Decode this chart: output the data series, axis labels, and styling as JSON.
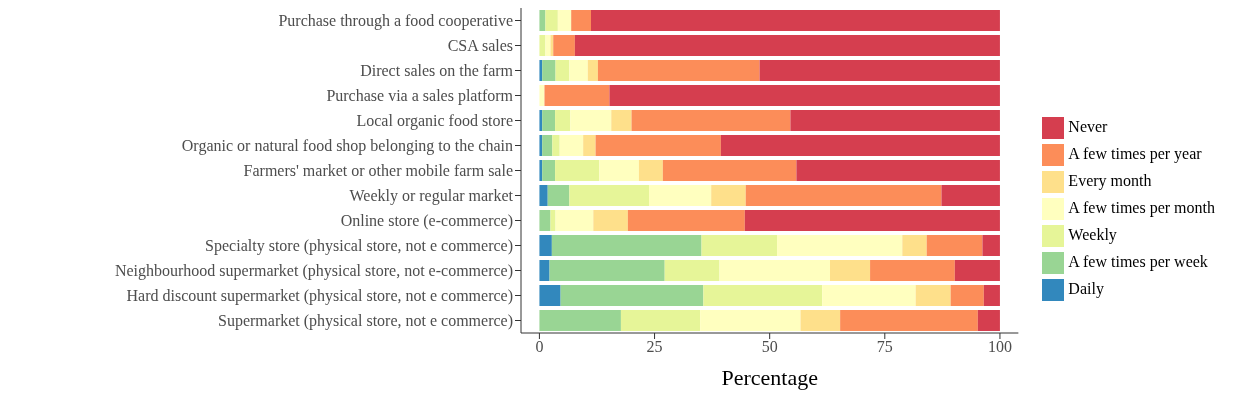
{
  "chart_data": {
    "type": "bar",
    "orientation": "horizontal",
    "stacked": true,
    "xlabel": "Percentage",
    "legend": "right",
    "grid": false,
    "xlim": [
      -4,
      104
    ],
    "xticks": [
      0,
      25,
      50,
      75,
      100
    ],
    "categories": [
      "Purchase through a food cooperative",
      "CSA sales",
      "Direct sales on the farm",
      "Purchase via a sales platform",
      "Local organic food store",
      "Organic or natural food shop belonging to the chain",
      "Farmers' market or other mobile farm sale",
      "Weekly or regular market",
      "Online store (e-commerce)",
      "Specialty store (physical store, not e commerce)",
      "Neighbourhood supermarket (physical store, not e-commerce)",
      "Hard discount supermarket (physical store, not e commerce)",
      "Supermarket (physical store, not e commerce)"
    ],
    "series": [
      {
        "name": "Daily",
        "color": "#3288bd",
        "values": [
          0,
          0,
          0.6,
          0,
          0.6,
          0.6,
          0.6,
          1.8,
          0,
          2.7,
          2.2,
          4.6,
          0
        ]
      },
      {
        "name": "A few times per week",
        "color": "#99d594",
        "values": [
          1.3,
          0,
          2.9,
          0,
          2.8,
          2.2,
          2.8,
          4.7,
          2.4,
          32.5,
          25.0,
          31.0,
          17.7
        ]
      },
      {
        "name": "Weekly",
        "color": "#e6f598",
        "values": [
          2.7,
          1.3,
          3.0,
          0,
          3.3,
          1.6,
          9.6,
          17.3,
          1.1,
          16.4,
          11.9,
          25.8,
          17.2
        ]
      },
      {
        "name": "A few times per month",
        "color": "#ffffbf",
        "values": [
          2.9,
          1.1,
          4.0,
          1.1,
          8.9,
          5.1,
          8.6,
          13.5,
          8.2,
          27.2,
          24.0,
          20.3,
          21.8
        ]
      },
      {
        "name": "Every month",
        "color": "#fee08b",
        "values": [
          0,
          0.6,
          2.2,
          0,
          4.4,
          2.7,
          5.2,
          7.5,
          7.5,
          5.3,
          8.7,
          7.6,
          8.6
        ]
      },
      {
        "name": "A few times per year",
        "color": "#fc8d59",
        "values": [
          4.3,
          4.7,
          35.1,
          14.1,
          34.5,
          27.2,
          29.0,
          42.5,
          25.4,
          12.1,
          18.4,
          7.2,
          29.9
        ]
      },
      {
        "name": "Never",
        "color": "#d53e4f",
        "values": [
          88.8,
          92.3,
          52.2,
          84.8,
          45.5,
          60.6,
          44.2,
          12.7,
          55.4,
          3.8,
          9.8,
          3.5,
          4.8
        ]
      }
    ]
  }
}
